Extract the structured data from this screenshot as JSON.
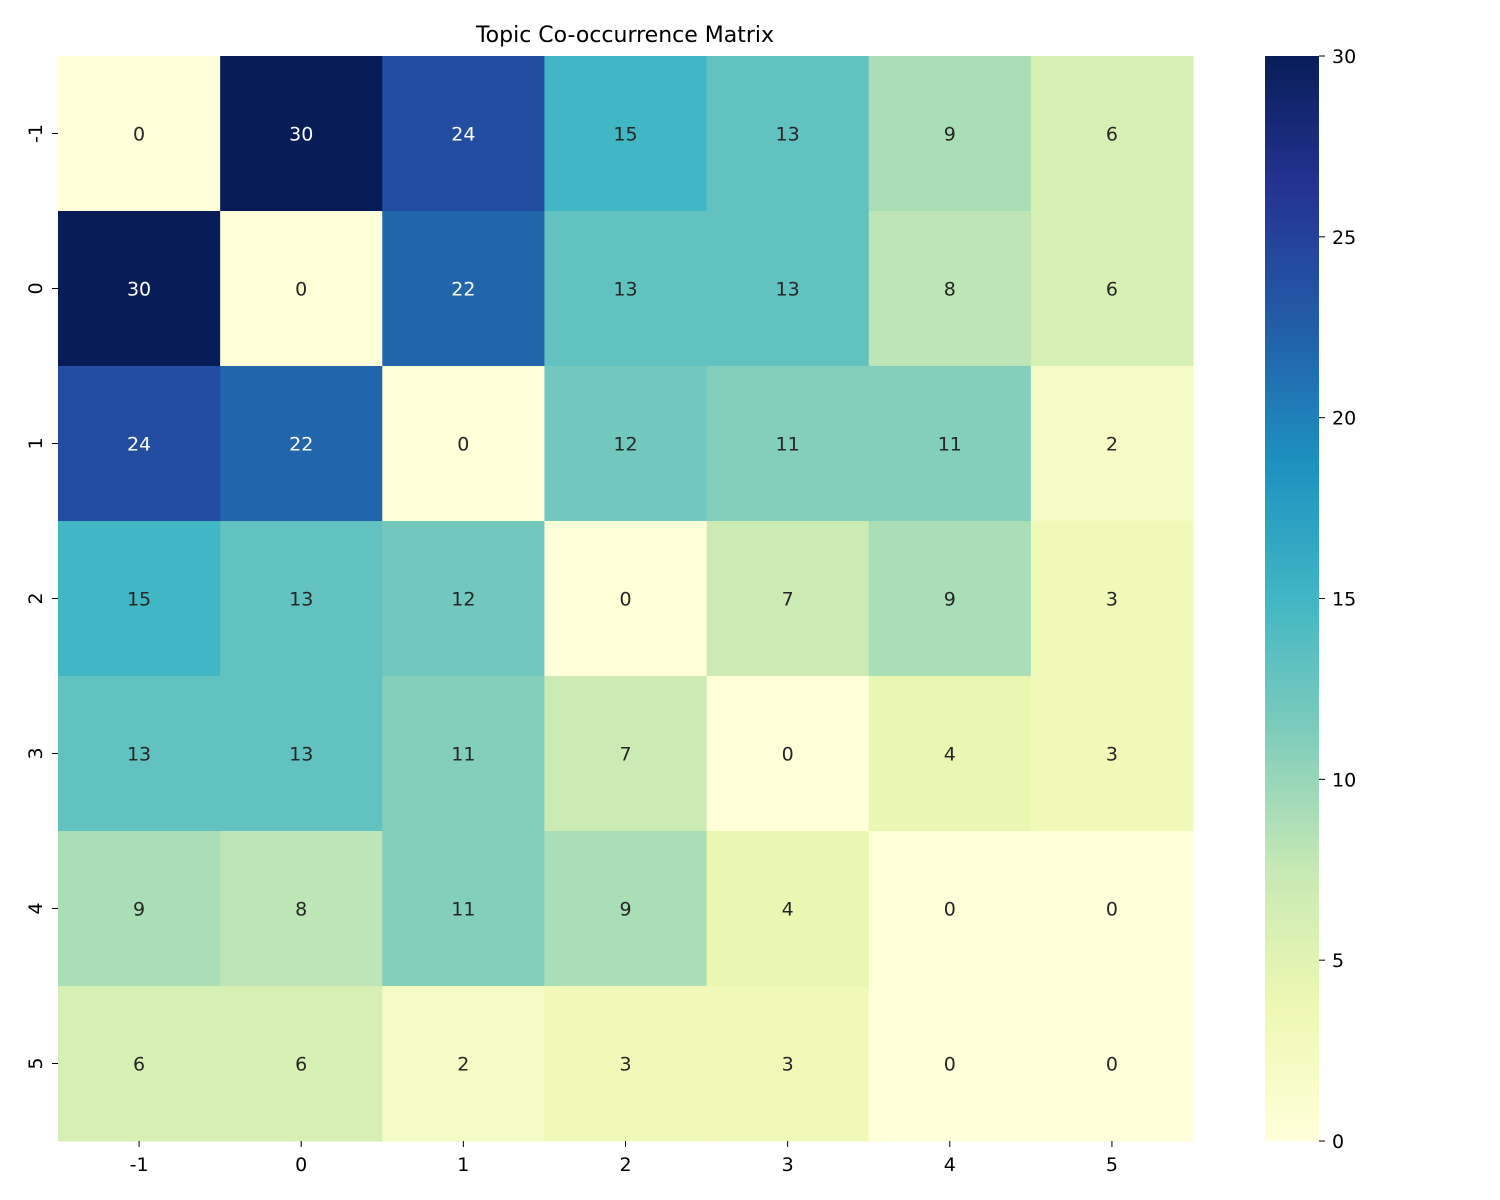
{
  "chart_data": {
    "type": "heatmap",
    "title": "Topic Co-occurrence Matrix",
    "xlabel": "",
    "ylabel": "",
    "x_categories": [
      "-1",
      "0",
      "1",
      "2",
      "3",
      "4",
      "5"
    ],
    "y_categories": [
      "-1",
      "0",
      "1",
      "2",
      "3",
      "4",
      "5"
    ],
    "values": [
      [
        0,
        30,
        24,
        15,
        13,
        9,
        6
      ],
      [
        30,
        0,
        22,
        13,
        13,
        8,
        6
      ],
      [
        24,
        22,
        0,
        12,
        11,
        11,
        2
      ],
      [
        15,
        13,
        12,
        0,
        7,
        9,
        3
      ],
      [
        13,
        13,
        11,
        7,
        0,
        4,
        3
      ],
      [
        9,
        8,
        11,
        9,
        4,
        0,
        0
      ],
      [
        6,
        6,
        2,
        3,
        3,
        0,
        0
      ]
    ],
    "colormap": "YlGnBu",
    "colormap_stops": [
      "#ffffd9",
      "#edf8b1",
      "#c7e9b4",
      "#7fcdbb",
      "#41b6c4",
      "#1d91c0",
      "#225ea8",
      "#253494",
      "#081d58"
    ],
    "vmin": 0,
    "vmax": 30,
    "colorbar_ticks": [
      "0",
      "5",
      "10",
      "15",
      "20",
      "25",
      "30"
    ],
    "annotations": true
  }
}
